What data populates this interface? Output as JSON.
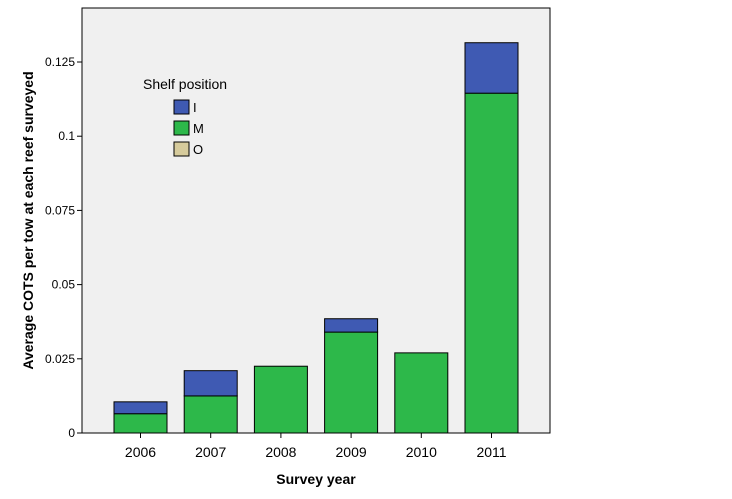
{
  "chart_data": {
    "type": "bar",
    "stacked": true,
    "categories": [
      "2006",
      "2007",
      "2008",
      "2009",
      "2010",
      "2011"
    ],
    "series": [
      {
        "name": "M",
        "color": "#2db84a",
        "values": [
          0.0065,
          0.0125,
          0.0225,
          0.034,
          0.027,
          0.1145
        ]
      },
      {
        "name": "I",
        "color": "#3f5ab3",
        "values": [
          0.004,
          0.0085,
          0.0,
          0.0045,
          0.0,
          0.017
        ]
      },
      {
        "name": "O",
        "color": "#d6cb9c",
        "values": [
          0,
          0,
          0,
          0,
          0,
          0
        ]
      }
    ],
    "xlabel": "Survey year",
    "ylabel": "Average COTS per tow at each reef surveyed",
    "ylim": [
      0,
      0.1432
    ],
    "yticks": [
      0,
      0.025,
      0.05,
      0.075,
      0.1,
      0.125
    ],
    "ytick_labels": [
      "0",
      "0.025",
      "0.05",
      "0.075",
      "0.1",
      "0.125"
    ],
    "legend": {
      "title": "Shelf position",
      "position": "top-left",
      "entries": [
        {
          "label": "I",
          "color": "#3f5ab3"
        },
        {
          "label": "M",
          "color": "#2db84a"
        },
        {
          "label": "O",
          "color": "#d6cb9c"
        }
      ]
    },
    "plot_background": "#f0f0f0",
    "grid": false
  }
}
